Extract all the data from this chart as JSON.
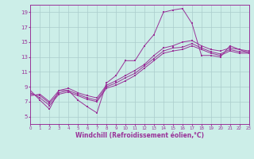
{
  "xlabel": "Windchill (Refroidissement éolien,°C)",
  "bg_color": "#cceee8",
  "grid_color": "#aacccc",
  "line_color": "#993399",
  "xlim": [
    0,
    23
  ],
  "ylim": [
    4,
    20
  ],
  "xticks": [
    0,
    1,
    2,
    3,
    4,
    5,
    6,
    7,
    8,
    9,
    10,
    11,
    12,
    13,
    14,
    15,
    16,
    17,
    18,
    19,
    20,
    21,
    22,
    23
  ],
  "yticks": [
    5,
    7,
    9,
    11,
    13,
    15,
    17,
    19
  ],
  "series": [
    {
      "x": [
        0,
        1,
        2,
        3,
        4,
        5,
        6,
        7,
        8,
        9,
        10,
        11,
        12,
        13,
        14,
        15,
        16,
        17,
        18,
        19,
        20,
        21,
        22,
        23
      ],
      "y": [
        8.5,
        7.2,
        6.0,
        8.5,
        8.5,
        7.2,
        6.3,
        5.5,
        9.5,
        10.5,
        12.5,
        12.5,
        14.5,
        16.0,
        19.0,
        19.3,
        19.5,
        17.5,
        13.2,
        13.2,
        13.0,
        14.5,
        14.0,
        13.5
      ]
    },
    {
      "x": [
        0,
        1,
        2,
        3,
        4,
        5,
        6,
        7,
        8,
        9,
        10,
        11,
        12,
        13,
        14,
        15,
        16,
        17,
        18,
        19,
        20,
        21,
        22,
        23
      ],
      "y": [
        8.2,
        7.5,
        6.5,
        8.0,
        8.3,
        7.8,
        7.3,
        7.0,
        8.8,
        9.2,
        9.8,
        10.5,
        11.5,
        12.5,
        13.5,
        13.8,
        14.0,
        14.5,
        14.0,
        13.5,
        13.2,
        13.8,
        13.5,
        13.5
      ]
    },
    {
      "x": [
        0,
        1,
        2,
        3,
        4,
        5,
        6,
        7,
        8,
        9,
        10,
        11,
        12,
        13,
        14,
        15,
        16,
        17,
        18,
        19,
        20,
        21,
        22,
        23
      ],
      "y": [
        8.0,
        7.8,
        6.8,
        8.2,
        8.5,
        8.0,
        7.5,
        7.2,
        9.0,
        9.5,
        10.2,
        10.8,
        11.8,
        12.8,
        13.8,
        14.2,
        14.3,
        14.8,
        14.2,
        13.7,
        13.4,
        14.0,
        13.7,
        13.7
      ]
    },
    {
      "x": [
        0,
        1,
        2,
        3,
        4,
        5,
        6,
        7,
        8,
        9,
        10,
        11,
        12,
        13,
        14,
        15,
        16,
        17,
        18,
        19,
        20,
        21,
        22,
        23
      ],
      "y": [
        7.8,
        8.0,
        7.0,
        8.5,
        8.8,
        8.2,
        7.8,
        7.5,
        9.2,
        9.8,
        10.5,
        11.2,
        12.0,
        13.2,
        14.2,
        14.5,
        15.0,
        15.2,
        14.5,
        14.0,
        13.8,
        14.2,
        14.0,
        13.8
      ]
    }
  ]
}
